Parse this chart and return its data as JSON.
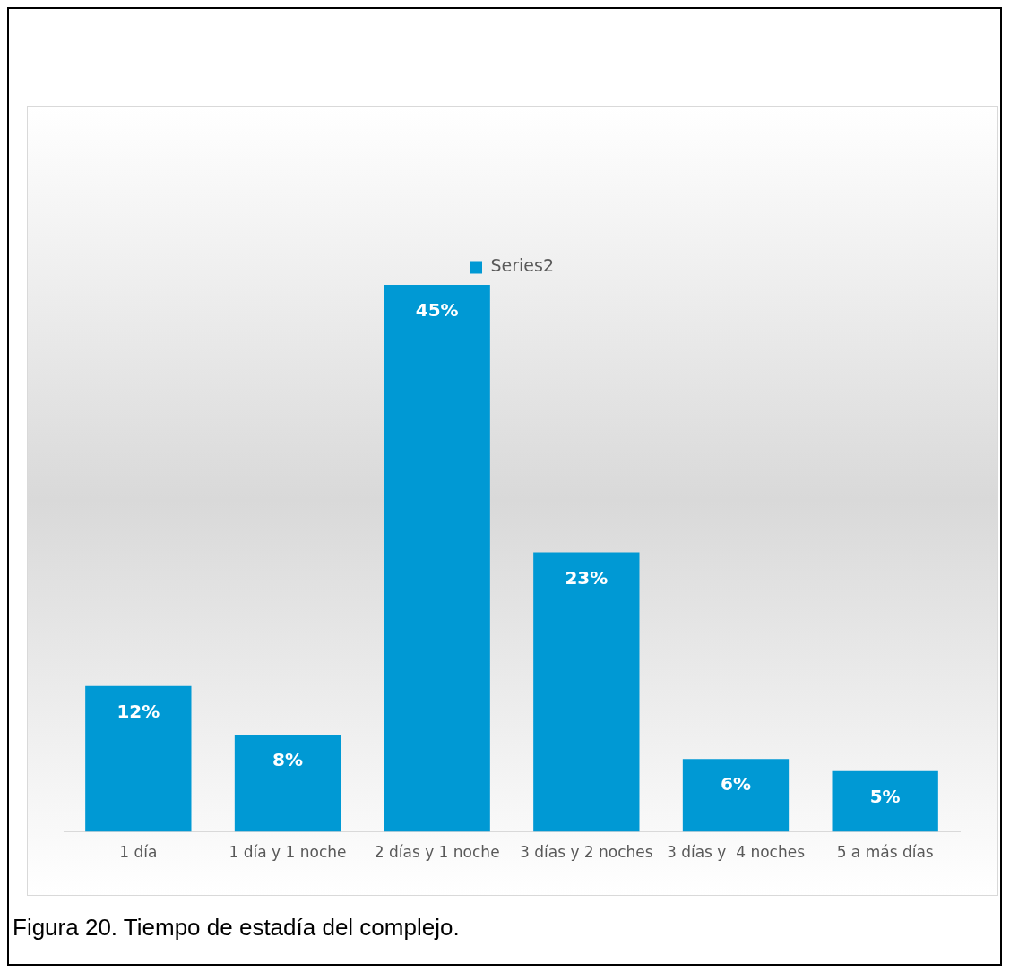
{
  "chart_data": {
    "type": "bar",
    "categories": [
      "1 día",
      "1 día y 1 noche",
      "2 días y 1 noche",
      "3 días y 2 noches",
      "3 días y  4 noches",
      "5 a más días"
    ],
    "series": [
      {
        "name": "Series2",
        "color": "#0099d4",
        "values": [
          12,
          8,
          45,
          23,
          6,
          5
        ],
        "value_labels": [
          "12%",
          "8%",
          "45%",
          "23%",
          "6%",
          "5%"
        ]
      }
    ],
    "legend": "top",
    "grid": false,
    "annotations": [
      "Figura 20. Tiempo de estadía del complejo."
    ]
  }
}
